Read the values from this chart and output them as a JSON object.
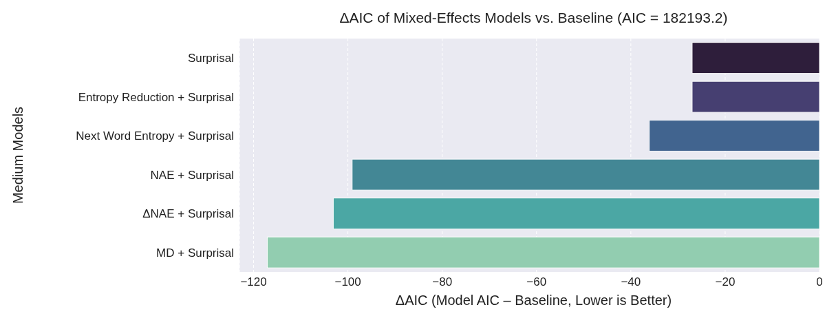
{
  "chart_data": {
    "type": "bar",
    "orientation": "horizontal",
    "title": "ΔAIC of Mixed-Effects Models vs. Baseline (AIC = 182193.2)",
    "xlabel": "ΔAIC (Model AIC – Baseline, Lower is Better)",
    "ylabel": "Medium Models",
    "categories": [
      "Surprisal",
      "Entropy Reduction + Surprisal",
      "Next Word Entropy + Surprisal",
      "NAE + Surprisal",
      "ΔNAE + Surprisal",
      "MD + Surprisal"
    ],
    "values": [
      -27.0,
      -27.0,
      -36.1,
      -99.1,
      -103.1,
      -117.1
    ],
    "colors": [
      "#2e1e3b",
      "#463f71",
      "#41648f",
      "#438795",
      "#4ba7a4",
      "#92cdb0"
    ],
    "xlim": [
      -123,
      0
    ],
    "xticks": [
      {
        "value": -120,
        "label": "−120"
      },
      {
        "value": -100,
        "label": "−100"
      },
      {
        "value": -80,
        "label": "−80"
      },
      {
        "value": -60,
        "label": "−60"
      },
      {
        "value": -40,
        "label": "−40"
      },
      {
        "value": -20,
        "label": "−20"
      },
      0
    ],
    "grid": "x"
  }
}
